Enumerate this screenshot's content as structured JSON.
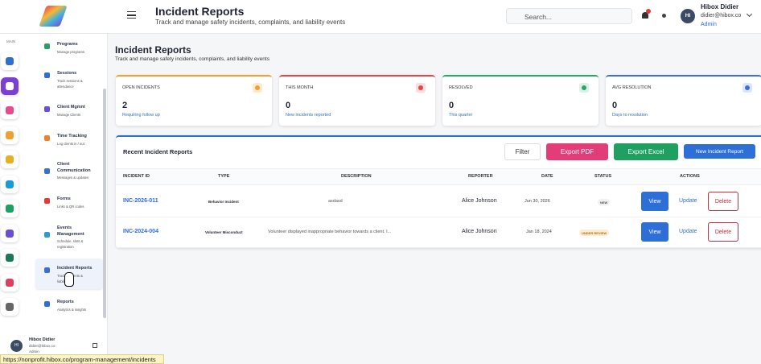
{
  "header": {
    "title": "Incident Reports",
    "subtitle": "Track and manage safety incidents, complaints, and liability events",
    "search_placeholder": "Search...",
    "user": {
      "initials": "HI",
      "name": "Hibox Didier",
      "email": "didier@hibox.co",
      "role": "Admin"
    }
  },
  "sidebar": {
    "section": "MAIN",
    "items": [
      {
        "title": "Programs",
        "desc": "Manage programs"
      },
      {
        "title": "Sessions",
        "desc": "Track sessions & attendance"
      },
      {
        "title": "Client Mgmnt",
        "desc": "Manage Clients"
      },
      {
        "title": "Time Tracking",
        "desc": "Log clients in / out"
      },
      {
        "title": "Client Communication",
        "desc": "Messages & updates"
      },
      {
        "title": "Forms",
        "desc": "Links & QR codes"
      },
      {
        "title": "Events Management",
        "desc": "Schedule, slots & registration"
      },
      {
        "title": "Incident Reports",
        "desc": "Track incidents & liability"
      },
      {
        "title": "Reports",
        "desc": "Analytics & insights"
      }
    ],
    "user": {
      "initials": "HI",
      "name": "Hibox Didier",
      "email": "didier@hibox.co",
      "role": "Admin"
    }
  },
  "page": {
    "title": "Incident Reports",
    "subtitle": "Track and manage safety incidents, complaints, and liability events"
  },
  "stats": [
    {
      "label": "OPEN INCIDENTS",
      "value": 2,
      "note": "Requiring follow up"
    },
    {
      "label": "THIS MONTH",
      "value": 0,
      "note": "New incidents reported"
    },
    {
      "label": "RESOLVED",
      "value": 0,
      "note": "This quarter"
    },
    {
      "label": "AVG RESOLUTION",
      "value": 0,
      "note": "Days to resolution"
    }
  ],
  "table": {
    "title": "Recent Incident Reports",
    "buttons": [
      "Filter",
      "Export PDF",
      "Export Excel",
      "New Incident Report"
    ],
    "columns": [
      "INCIDENT ID",
      "TYPE",
      "DESCRIPTION",
      "REPORTER",
      "DATE",
      "STATUS",
      "ACTIONS"
    ],
    "rows": [
      [
        "INC-2026-011",
        "Behavior Incident",
        "asdasd",
        "Alice Johnson",
        "Jun 30, 2026",
        "NEW"
      ],
      [
        "INC-2024-004",
        "Volunteer Misconduct",
        "Volunteer displayed inappropriate behavior towards a client. I...",
        "Alice Johnson",
        "Jan 18, 2024",
        "UNDER REVIEW"
      ]
    ],
    "actions": [
      "View",
      "Update",
      "Delete"
    ]
  },
  "status_url": "https://nonprofit.hibox.co/program-management/incidents"
}
